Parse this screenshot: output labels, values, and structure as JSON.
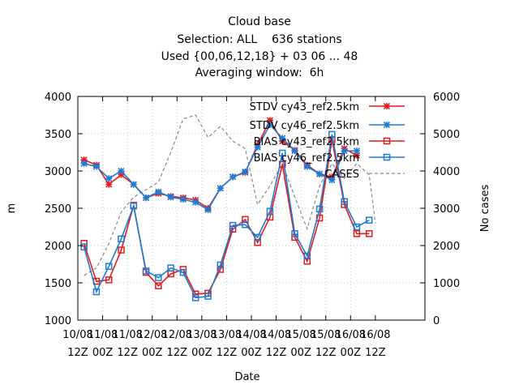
{
  "chart_data": {
    "type": "line",
    "title_lines": [
      "Cloud base",
      "Selection: ALL    636 stations",
      "Used {00,06,12,18} + 03 06 ... 48",
      "Averaging window:  6h"
    ],
    "xlabel": "Date",
    "ylabel": "m",
    "y2label": "No cases",
    "ylim": [
      1000,
      4000
    ],
    "y2lim": [
      0,
      6000
    ],
    "xlim": [
      0,
      168
    ],
    "grid": true,
    "legend_position": "top-right",
    "x_ticks": [
      {
        "x": 0,
        "l1": "10/08",
        "l2": "12Z"
      },
      {
        "x": 12,
        "l1": "11/08",
        "l2": "00Z"
      },
      {
        "x": 24,
        "l1": "11/08",
        "l2": "12Z"
      },
      {
        "x": 36,
        "l1": "12/08",
        "l2": "00Z"
      },
      {
        "x": 48,
        "l1": "12/08",
        "l2": "12Z"
      },
      {
        "x": 60,
        "l1": "13/08",
        "l2": "00Z"
      },
      {
        "x": 72,
        "l1": "13/08",
        "l2": "12Z"
      },
      {
        "x": 84,
        "l1": "14/08",
        "l2": "00Z"
      },
      {
        "x": 96,
        "l1": "14/08",
        "l2": "12Z"
      },
      {
        "x": 108,
        "l1": "15/08",
        "l2": "00Z"
      },
      {
        "x": 120,
        "l1": "15/08",
        "l2": "12Z"
      },
      {
        "x": 132,
        "l1": "16/08",
        "l2": "00Z"
      },
      {
        "x": 144,
        "l1": "16/08",
        "l2": "12Z"
      }
    ],
    "y_ticks": [
      "1000",
      "1500",
      "2000",
      "2500",
      "3000",
      "3500",
      "4000"
    ],
    "y2_ticks": [
      "0",
      "1000",
      "2000",
      "3000",
      "4000",
      "5000",
      "6000"
    ],
    "x": [
      3,
      9,
      15,
      21,
      27,
      33,
      39,
      45,
      51,
      57,
      63,
      69,
      75,
      81,
      87,
      93,
      99,
      105,
      111,
      117,
      123,
      129,
      135,
      141,
      144
    ],
    "series": [
      {
        "name": "STDV cy43_ref2.5km",
        "color": "#e41a1c",
        "marker": "x",
        "axis": "left",
        "values": [
          3150,
          3080,
          2820,
          2950,
          2820,
          2640,
          2700,
          2660,
          2640,
          2610,
          2500,
          2770,
          2920,
          2980,
          3350,
          3680,
          3400,
          3280,
          3080,
          2960,
          2920,
          3300,
          3210,
          null,
          null
        ]
      },
      {
        "name": "STDV cy46_ref2.5km",
        "color": "#1c7cd5",
        "marker": "x",
        "axis": "left",
        "values": [
          3100,
          3060,
          2900,
          3000,
          2820,
          2640,
          2720,
          2650,
          2620,
          2580,
          2480,
          2770,
          2920,
          2990,
          3320,
          3620,
          3440,
          3270,
          3060,
          2960,
          2880,
          3270,
          3270,
          null,
          null
        ]
      },
      {
        "name": "BIAS cy43_ref2.5km",
        "color": "#e41a1c",
        "marker": "square",
        "axis": "left",
        "values": [
          2030,
          1520,
          1540,
          1940,
          2540,
          1640,
          1460,
          1620,
          1680,
          1350,
          1360,
          1680,
          2220,
          2350,
          2040,
          2380,
          3090,
          2110,
          1790,
          2370,
          3420,
          2550,
          2160,
          2160,
          null
        ]
      },
      {
        "name": "BIAS cy46_ref2.5km",
        "color": "#1c7cd5",
        "marker": "square",
        "axis": "left",
        "values": [
          1980,
          1380,
          1720,
          2090,
          2530,
          1660,
          1570,
          1700,
          1640,
          1300,
          1320,
          1740,
          2270,
          2280,
          2110,
          2460,
          3240,
          2160,
          1860,
          2490,
          3490,
          2590,
          2250,
          2340,
          null
        ]
      },
      {
        "name": "CASES",
        "color": "#888888",
        "marker": "none",
        "dash": true,
        "axis": "right",
        "values": [
          1200,
          1400,
          2050,
          2900,
          3300,
          3500,
          3700,
          4500,
          5400,
          5500,
          4900,
          5200,
          4800,
          4600,
          3100,
          3600,
          4200,
          3300,
          2450,
          3600,
          4200,
          3800,
          4200,
          3900,
          2600
        ]
      }
    ]
  }
}
